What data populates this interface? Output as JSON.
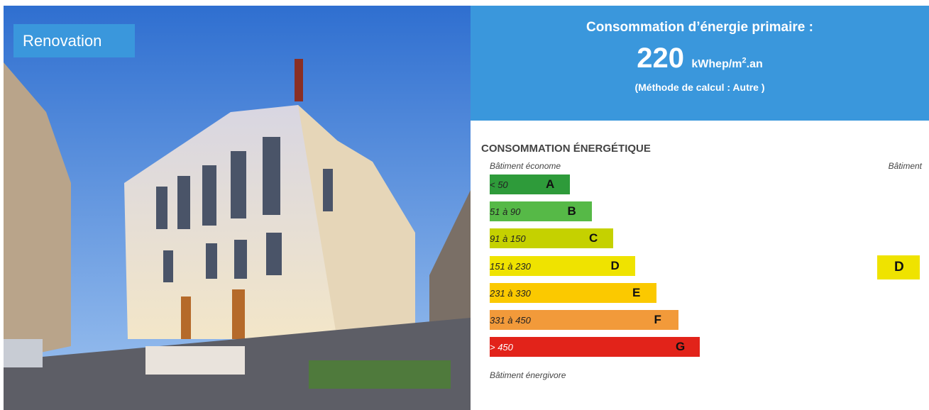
{
  "badge": "Renovation",
  "header": {
    "title": "Consommation d’énergie primaire :",
    "value": "220",
    "unit": "kWhep/m",
    "unit_sup": "2",
    "unit_suffix": ".an",
    "method": "(Méthode de calcul : Autre )"
  },
  "label": {
    "title": "CONSOMMATION ÉNERGÉTIQUE",
    "top_left": "Bâtiment économe",
    "top_right": "Bâtiment",
    "bottom": "Bâtiment énergivore",
    "rows": [
      {
        "range": "< 50",
        "class": "A",
        "color": "#2e9b3a"
      },
      {
        "range": "51 à 90",
        "class": "B",
        "color": "#56b947"
      },
      {
        "range": "91 à 150",
        "class": "C",
        "color": "#c5d100"
      },
      {
        "range": "151 à 230",
        "class": "D",
        "color": "#efe300"
      },
      {
        "range": "231 à 330",
        "class": "E",
        "color": "#fbc900"
      },
      {
        "range": "331 à 450",
        "class": "F",
        "color": "#f29a3a"
      },
      {
        "range": "> 450",
        "class": "G",
        "color": "#e2231a"
      }
    ],
    "current_class": "D"
  }
}
